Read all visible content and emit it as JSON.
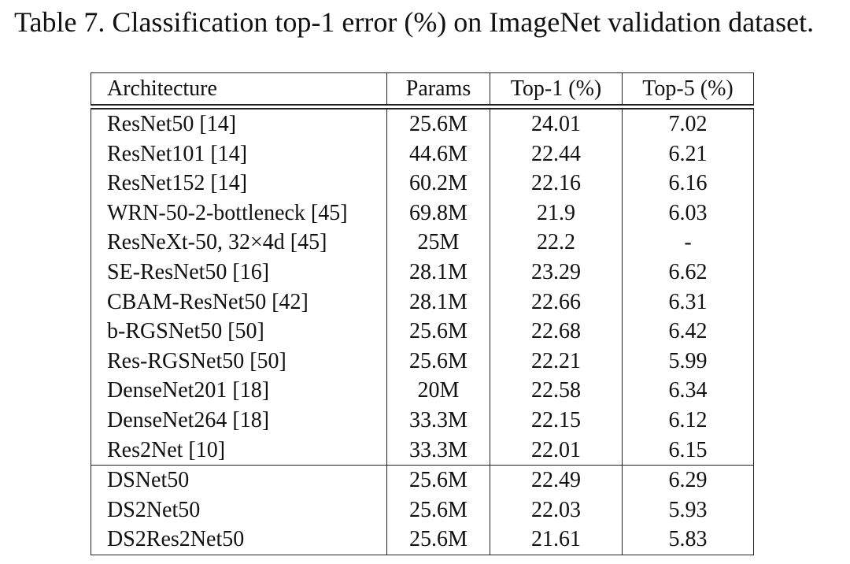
{
  "caption": "Table 7. Classification top-1 error (%) on ImageNet validation dataset.",
  "table": {
    "header": [
      "Architecture",
      "Params",
      "Top-1 (%)",
      "Top-5 (%)"
    ],
    "groups": [
      [
        [
          "ResNet50 [14]",
          "25.6M",
          "24.01",
          "7.02"
        ],
        [
          "ResNet101 [14]",
          "44.6M",
          "22.44",
          "6.21"
        ],
        [
          "ResNet152 [14]",
          "60.2M",
          "22.16",
          "6.16"
        ],
        [
          "WRN-50-2-bottleneck [45]",
          "69.8M",
          "21.9",
          "6.03"
        ],
        [
          "ResNeXt-50, 32×4d [45]",
          "25M",
          "22.2",
          "-"
        ],
        [
          "SE-ResNet50 [16]",
          "28.1M",
          "23.29",
          "6.62"
        ],
        [
          "CBAM-ResNet50 [42]",
          "28.1M",
          "22.66",
          "6.31"
        ],
        [
          "b-RGSNet50 [50]",
          "25.6M",
          "22.68",
          "6.42"
        ],
        [
          "Res-RGSNet50 [50]",
          "25.6M",
          "22.21",
          "5.99"
        ],
        [
          "DenseNet201 [18]",
          "20M",
          "22.58",
          "6.34"
        ],
        [
          "DenseNet264 [18]",
          "33.3M",
          "22.15",
          "6.12"
        ],
        [
          "Res2Net [10]",
          "33.3M",
          "22.01",
          "6.15"
        ]
      ],
      [
        [
          "DSNet50",
          "25.6M",
          "22.49",
          "6.29"
        ],
        [
          "DS2Net50",
          "25.6M",
          "22.03",
          "5.93"
        ],
        [
          "DS2Res2Net50",
          "25.6M",
          "21.61",
          "5.83"
        ]
      ]
    ]
  }
}
